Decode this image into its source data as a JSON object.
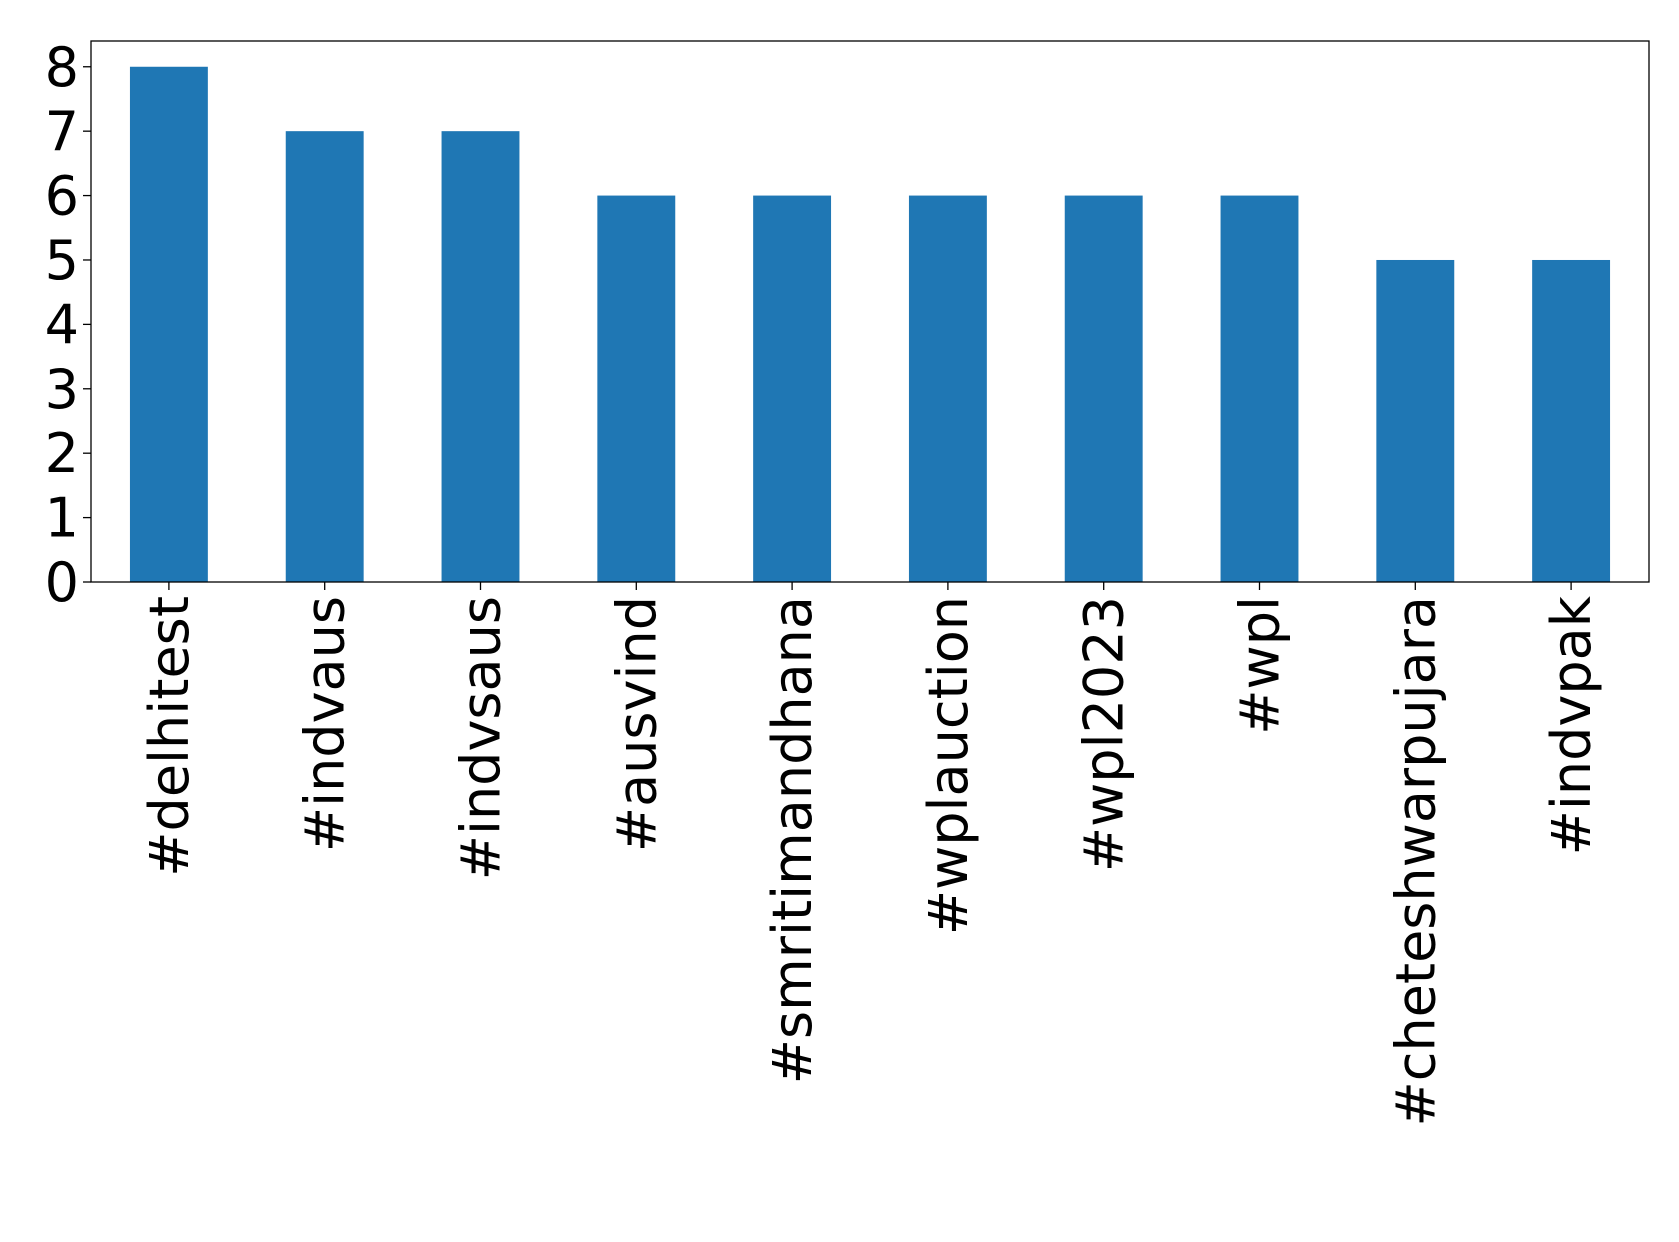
{
  "chart_data": {
    "type": "bar",
    "categories": [
      "#delhitest",
      "#indvaus",
      "#indvsaus",
      "#ausvind",
      "#smritimandhana",
      "#wplauction",
      "#wpl2023",
      "#wpl",
      "#cheteshwarpujara",
      "#indvpak"
    ],
    "values": [
      8,
      7,
      7,
      6,
      6,
      6,
      6,
      6,
      5,
      5
    ],
    "color": "#1f77b4",
    "ylim": [
      0,
      8.4
    ],
    "yticks": [
      0,
      1,
      2,
      3,
      4,
      5,
      6,
      7,
      8
    ],
    "grid": false
  }
}
